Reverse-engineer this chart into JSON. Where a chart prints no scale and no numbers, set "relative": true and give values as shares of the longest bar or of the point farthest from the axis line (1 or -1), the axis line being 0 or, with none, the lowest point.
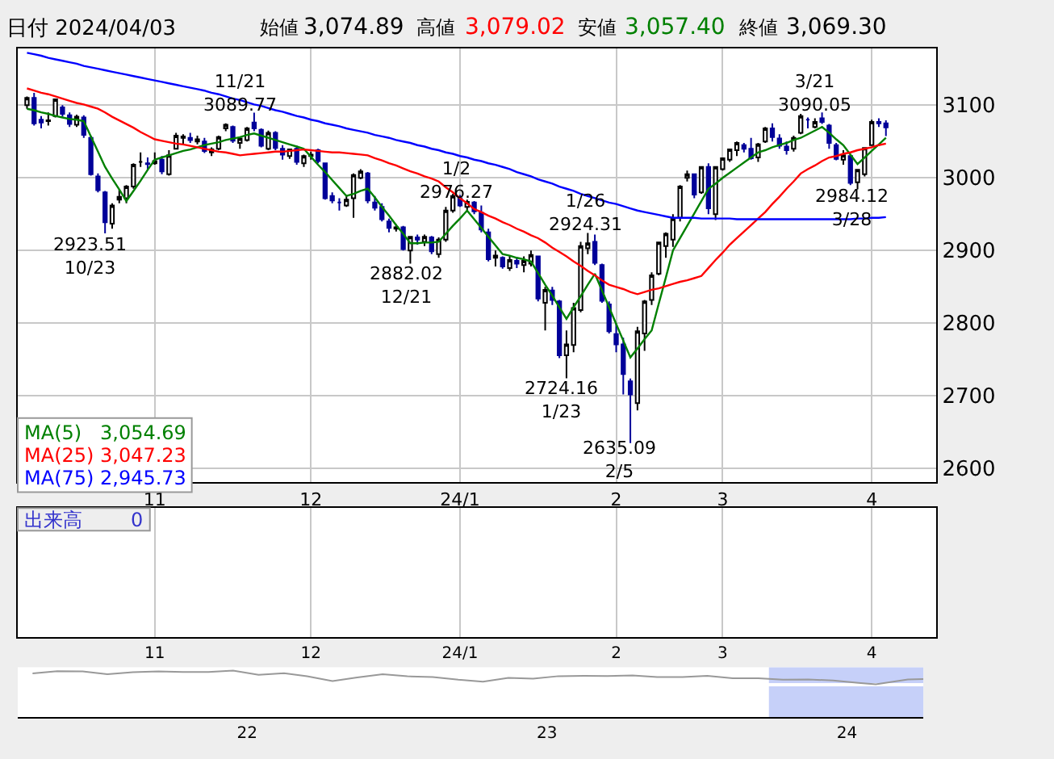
{
  "chart_data": [
    {
      "type": "candlestick",
      "title": "日付 2024/04/03",
      "categories": [
        null,
        null,
        null,
        null,
        null,
        null,
        null,
        null,
        null,
        null,
        null,
        null,
        null,
        null,
        null,
        null,
        null,
        null,
        "11",
        null,
        null,
        null,
        null,
        null,
        null,
        null,
        null,
        null,
        null,
        null,
        null,
        null,
        null,
        null,
        null,
        null,
        null,
        null,
        null,
        null,
        "12",
        null,
        null,
        null,
        null,
        null,
        null,
        null,
        null,
        null,
        null,
        null,
        null,
        null,
        null,
        null,
        null,
        null,
        null,
        null,
        null,
        "24/1",
        null,
        null,
        null,
        null,
        null,
        null,
        null,
        null,
        null,
        null,
        null,
        null,
        null,
        null,
        null,
        null,
        null,
        null,
        null,
        null,
        null,
        "2",
        null,
        null,
        null,
        null,
        null,
        null,
        null,
        null,
        null,
        null,
        null,
        null,
        null,
        null,
        "3",
        null,
        null,
        null,
        null,
        null,
        null,
        null,
        null,
        null,
        null,
        null,
        null,
        null,
        null,
        null,
        null,
        null,
        null,
        null,
        null,
        "4",
        null,
        null
      ],
      "ohlc": [
        [
          3100,
          3112,
          3095,
          3110
        ],
        [
          3110,
          3117,
          3072,
          3075
        ],
        [
          3080,
          3085,
          3068,
          3076
        ],
        [
          3078,
          3090,
          3072,
          3079
        ],
        [
          3085,
          3109,
          3083,
          3108
        ],
        [
          3097,
          3100,
          3084,
          3088
        ],
        [
          3086,
          3090,
          3070,
          3074
        ],
        [
          3073,
          3087,
          3070,
          3084
        ],
        [
          3083,
          3086,
          3055,
          3059
        ],
        [
          3055,
          3058,
          3003,
          3005
        ],
        [
          3002,
          3006,
          2980,
          2983
        ],
        [
          2980,
          2982,
          2923.51,
          2939
        ],
        [
          2937,
          2965,
          2930,
          2962
        ],
        [
          2970,
          2984,
          2965,
          2974
        ],
        [
          2972,
          2990,
          2965,
          2988
        ],
        [
          2988,
          3020,
          2985,
          3018
        ],
        [
          3022,
          3035,
          3015,
          3022
        ],
        [
          3020,
          3028,
          3010,
          3019
        ],
        [
          3020,
          3035,
          3018,
          3023
        ],
        [
          3025,
          3030,
          3005,
          3009
        ],
        [
          3005,
          3038,
          3003,
          3031
        ],
        [
          3040,
          3062,
          3040,
          3058
        ],
        [
          3055,
          3060,
          3045,
          3057
        ],
        [
          3055,
          3062,
          3048,
          3052
        ],
        [
          3050,
          3058,
          3046,
          3053
        ],
        [
          3050,
          3055,
          3034,
          3037
        ],
        [
          3035,
          3042,
          3030,
          3039
        ],
        [
          3040,
          3058,
          3038,
          3056
        ],
        [
          3068,
          3075,
          3064,
          3073
        ],
        [
          3070,
          3072,
          3048,
          3051
        ],
        [
          3048,
          3056,
          3040,
          3054
        ],
        [
          3052,
          3070,
          3050,
          3068
        ],
        [
          3076,
          3089.77,
          3064,
          3068
        ],
        [
          3066,
          3068,
          3042,
          3044
        ],
        [
          3040,
          3065,
          3038,
          3062
        ],
        [
          3062,
          3064,
          3038,
          3041
        ],
        [
          3040,
          3045,
          3025,
          3032
        ],
        [
          3030,
          3040,
          3026,
          3039
        ],
        [
          3040,
          3044,
          3018,
          3022
        ],
        [
          3020,
          3032,
          3015,
          3030
        ],
        [
          3030,
          3036,
          3025,
          3032
        ],
        [
          3038,
          3040,
          3020,
          3023
        ],
        [
          3020,
          3021,
          2970,
          2972
        ],
        [
          2975,
          2980,
          2965,
          2969
        ],
        [
          2966,
          2972,
          2955,
          2966
        ],
        [
          2962,
          2975,
          2960,
          2970
        ],
        [
          2972,
          3006,
          2945,
          3004
        ],
        [
          3000,
          3012,
          2998,
          3009
        ],
        [
          3006,
          3008,
          2965,
          2969
        ],
        [
          2966,
          2975,
          2955,
          2959
        ],
        [
          2960,
          2965,
          2940,
          2943
        ],
        [
          2940,
          2944,
          2925,
          2931
        ],
        [
          2930,
          2936,
          2926,
          2932
        ],
        [
          2932,
          2934,
          2900,
          2902
        ],
        [
          2900,
          2920,
          2882.02,
          2919
        ],
        [
          2918,
          2922,
          2908,
          2915
        ],
        [
          2912,
          2922,
          2906,
          2919
        ],
        [
          2918,
          2920,
          2895,
          2899
        ],
        [
          2895,
          2918,
          2890,
          2915
        ],
        [
          2915,
          2960,
          2912,
          2955
        ],
        [
          2955,
          2978,
          2952,
          2975
        ],
        [
          2972,
          2976.27,
          2960,
          2962
        ],
        [
          2960,
          2970,
          2955,
          2967
        ],
        [
          2966,
          2968,
          2950,
          2954
        ],
        [
          2952,
          2962,
          2925,
          2929
        ],
        [
          2925,
          2930,
          2885,
          2888
        ],
        [
          2890,
          2900,
          2878,
          2893
        ],
        [
          2890,
          2892,
          2875,
          2878
        ],
        [
          2876,
          2893,
          2872,
          2887
        ],
        [
          2886,
          2890,
          2876,
          2882
        ],
        [
          2880,
          2892,
          2870,
          2886
        ],
        [
          2882,
          2900,
          2878,
          2894
        ],
        [
          2892,
          2893,
          2830,
          2834
        ],
        [
          2828,
          2850,
          2790,
          2846
        ],
        [
          2845,
          2850,
          2825,
          2832
        ],
        [
          2830,
          2832,
          2752,
          2756
        ],
        [
          2756,
          2790,
          2724.16,
          2771
        ],
        [
          2770,
          2828,
          2760,
          2821
        ],
        [
          2818,
          2912,
          2815,
          2906
        ],
        [
          2903,
          2924.31,
          2895,
          2910
        ],
        [
          2912,
          2922,
          2880,
          2883
        ],
        [
          2880,
          2882,
          2828,
          2831
        ],
        [
          2826,
          2830,
          2786,
          2789
        ],
        [
          2785,
          2800,
          2760,
          2771
        ],
        [
          2771,
          2780,
          2702,
          2730
        ],
        [
          2720,
          2724,
          2635.09,
          2702
        ],
        [
          2690,
          2795,
          2680,
          2789
        ],
        [
          2786,
          2832,
          2762,
          2830
        ],
        [
          2832,
          2870,
          2825,
          2866
        ],
        [
          2868,
          2912,
          2866,
          2911
        ],
        [
          2906,
          2925,
          2890,
          2923
        ],
        [
          2915,
          2950,
          2905,
          2944
        ],
        [
          2945,
          2990,
          2940,
          2988
        ],
        [
          3000,
          3010,
          2995,
          3005
        ],
        [
          3005,
          3006,
          2972,
          2977
        ],
        [
          2980,
          3016,
          2978,
          3015
        ],
        [
          3015,
          3020,
          2950,
          2958
        ],
        [
          2950,
          3016,
          2942,
          3015
        ],
        [
          3012,
          3028,
          3010,
          3027
        ],
        [
          3025,
          3040,
          3022,
          3039
        ],
        [
          3038,
          3050,
          3030,
          3048
        ],
        [
          3045,
          3048,
          3035,
          3040
        ],
        [
          3040,
          3055,
          3025,
          3027
        ],
        [
          3028,
          3048,
          3022,
          3046
        ],
        [
          3050,
          3070,
          3048,
          3068
        ],
        [
          3068,
          3075,
          3050,
          3056
        ],
        [
          3054,
          3060,
          3040,
          3044
        ],
        [
          3043,
          3050,
          3032,
          3038
        ],
        [
          3040,
          3058,
          3036,
          3055
        ],
        [
          3062,
          3088,
          3060,
          3085
        ],
        [
          3080,
          3083,
          3068,
          3080
        ],
        [
          3070,
          3082,
          3068,
          3077
        ],
        [
          3082,
          3090.05,
          3074,
          3077
        ],
        [
          3072,
          3074,
          3040,
          3048
        ],
        [
          3045,
          3048,
          3024,
          3026
        ],
        [
          3025,
          3038,
          3018,
          3031
        ],
        [
          3030,
          3032,
          2990,
          2993
        ],
        [
          2994,
          3012,
          2984.12,
          3011
        ],
        [
          3005,
          3042,
          3002,
          3041
        ],
        [
          3045,
          3080,
          3044,
          3077
        ],
        [
          3077,
          3082,
          3070,
          3075
        ],
        [
          3074.89,
          3079.02,
          3057.4,
          3069.3
        ]
      ],
      "series": [
        {
          "name": "MA(5)",
          "type": "line",
          "color": "#008000",
          "values": [
            3095,
            3093,
            3090,
            3088,
            3085,
            3083,
            3081,
            3080,
            3078,
            3057,
            3036,
            3015,
            2999,
            2984,
            2968,
            2982,
            2996,
            3011,
            3025,
            3028,
            3031,
            3034,
            3037,
            3039,
            3042,
            3045,
            3047,
            3049,
            3052,
            3054,
            3056,
            3059,
            3061,
            3058,
            3055,
            3052,
            3049,
            3046,
            3043,
            3040,
            3029,
            3018,
            3008,
            2997,
            2986,
            2975,
            2978,
            2982,
            2985,
            2973,
            2960,
            2948,
            2935,
            2923,
            2910,
            2910,
            2911,
            2911,
            2912,
            2923,
            2934,
            2944,
            2955,
            2943,
            2931,
            2919,
            2907,
            2895,
            2893,
            2890,
            2888,
            2885,
            2869,
            2853,
            2838,
            2822,
            2806,
            2822,
            2837,
            2853,
            2868,
            2845,
            2822,
            2799,
            2776,
            2753,
            2765,
            2778,
            2790,
            2827,
            2863,
            2900,
            2917,
            2934,
            2951,
            2968,
            2985,
            2992,
            3000,
            3007,
            3014,
            3021,
            3028,
            3035,
            3038,
            3042,
            3045,
            3048,
            3052,
            3055,
            3060,
            3065,
            3070,
            3062,
            3053,
            3045,
            3032,
            3019,
            3028,
            3037,
            3046,
            3055
          ]
        },
        {
          "name": "MA(25)",
          "type": "line",
          "color": "#ff0000",
          "values": [
            3123,
            3120,
            3117,
            3115,
            3112,
            3109,
            3106,
            3103,
            3101,
            3098,
            3095,
            3090,
            3084,
            3079,
            3074,
            3069,
            3063,
            3058,
            3053,
            3051,
            3049,
            3047,
            3046,
            3044,
            3042,
            3040,
            3038,
            3036,
            3035,
            3033,
            3031,
            3032,
            3033,
            3034,
            3035,
            3036,
            3036,
            3037,
            3038,
            3039,
            3038,
            3037,
            3036,
            3035,
            3035,
            3034,
            3033,
            3032,
            3031,
            3027,
            3024,
            3020,
            3017,
            3013,
            3009,
            3006,
            3002,
            2999,
            2995,
            2987,
            2980,
            2972,
            2965,
            2957,
            2953,
            2948,
            2944,
            2939,
            2935,
            2930,
            2926,
            2921,
            2917,
            2911,
            2904,
            2898,
            2892,
            2885,
            2879,
            2872,
            2866,
            2859,
            2853,
            2850,
            2847,
            2843,
            2840,
            2843,
            2846,
            2848,
            2851,
            2854,
            2857,
            2859,
            2862,
            2865,
            2876,
            2887,
            2897,
            2908,
            2917,
            2926,
            2935,
            2944,
            2953,
            2964,
            2974,
            2985,
            2995,
            3006,
            3012,
            3017,
            3023,
            3028,
            3030,
            3033,
            3035,
            3038,
            3040,
            3042,
            3045,
            3047
          ]
        },
        {
          "name": "MA(75)",
          "type": "line",
          "color": "#0000ff",
          "values": [
            3172,
            3170,
            3168,
            3165,
            3163,
            3161,
            3159,
            3157,
            3154,
            3152,
            3150,
            3148,
            3146,
            3144,
            3142,
            3140,
            3138,
            3136,
            3134,
            3132,
            3130,
            3128,
            3126,
            3124,
            3122,
            3120,
            3117,
            3115,
            3112,
            3109,
            3107,
            3104,
            3101,
            3099,
            3096,
            3093,
            3091,
            3088,
            3085,
            3083,
            3080,
            3078,
            3075,
            3073,
            3071,
            3068,
            3066,
            3064,
            3062,
            3059,
            3057,
            3055,
            3052,
            3050,
            3048,
            3045,
            3043,
            3040,
            3038,
            3035,
            3033,
            3030,
            3028,
            3025,
            3023,
            3020,
            3018,
            3015,
            3012,
            3008,
            3005,
            3002,
            2998,
            2995,
            2992,
            2988,
            2985,
            2982,
            2978,
            2975,
            2972,
            2969,
            2966,
            2964,
            2961,
            2958,
            2955,
            2953,
            2951,
            2949,
            2947,
            2945,
            2945,
            2945,
            2945,
            2944,
            2944,
            2944,
            2944,
            2944,
            2943,
            2943,
            2943,
            2943,
            2943,
            2943,
            2943,
            2943,
            2943,
            2943,
            2943,
            2943,
            2943,
            2943,
            2943,
            2943,
            2943,
            2944,
            2944,
            2945,
            2945,
            2946
          ]
        }
      ],
      "annotations": [
        "始値",
        "3,074.89",
        "高値",
        "3,079.02",
        "安値",
        "3,057.40",
        "終値",
        "3,069.30",
        "3,054.69",
        "3,047.23",
        "2,945.73",
        "11/21\n3089.77",
        "2923.51\n10/23",
        "2882.02\n12/21",
        "1/2\n2976.27",
        "1/26\n2924.31",
        "2724.16\n1/23",
        "2635.09\n2/5",
        "3/21\n3090.05",
        "2984.12\n3/28"
      ],
      "ylim": [
        2581,
        3178
      ],
      "yticks": [
        2600,
        2700,
        2800,
        2900,
        3000,
        3100
      ],
      "grid": true,
      "legend": "bottom left"
    },
    {
      "type": "other",
      "annotations": [
        "出来高",
        "0",
        "11",
        "12",
        "24/1",
        "2",
        "3",
        "4"
      ]
    },
    {
      "type": "line",
      "relative": true,
      "color": "#999999",
      "x": [
        "2021-04-15",
        "2021-05-15",
        "2021-06-15",
        "2021-07-15",
        "2021-08-15",
        "2021-09-15",
        "2021-10-15",
        "2021-11-15",
        "2021-12-15",
        "2022-01-15",
        "2022-02-15",
        "2022-03-15",
        "2022-04-15",
        "2022-05-15",
        "2022-06-15",
        "2022-07-15",
        "2022-08-15",
        "2022-09-15",
        "2022-10-15",
        "2022-11-15",
        "2022-12-15",
        "2023-01-15",
        "2023-02-15",
        "2023-03-15",
        "2023-04-15",
        "2023-05-15",
        "2023-06-15",
        "2023-07-15",
        "2023-08-15",
        "2023-09-15",
        "2023-10-15",
        "2023-11-15",
        "2023-12-15",
        "2024-01-15",
        "2024-02-05",
        "2024-03-15",
        "2024-04-03"
      ],
      "values": [
        0.8,
        0.96,
        0.95,
        0.74,
        0.89,
        0.95,
        0.9,
        0.91,
        1,
        0.7,
        0.81,
        0.59,
        0.24,
        0.51,
        0.74,
        0.59,
        0.53,
        0.34,
        0.2,
        0.48,
        0.41,
        0.6,
        0.62,
        0.61,
        0.66,
        0.53,
        0.53,
        0.63,
        0.45,
        0.44,
        0.34,
        0.35,
        0.29,
        0.1,
        0,
        0.36,
        0.39
      ],
      "xlim": [
        "2021-03-28",
        "2024-04-03"
      ],
      "xticks": [
        {
          "value": "2022-01-01",
          "label": "22"
        },
        {
          "value": "2023-01-01",
          "label": "23"
        },
        {
          "value": "2024-01-01",
          "label": "24"
        }
      ],
      "bands": [
        {
          "axis": "x",
          "from": "2023-09-28",
          "to": "2024-04-03",
          "color": "#b8c4f8"
        }
      ]
    }
  ]
}
